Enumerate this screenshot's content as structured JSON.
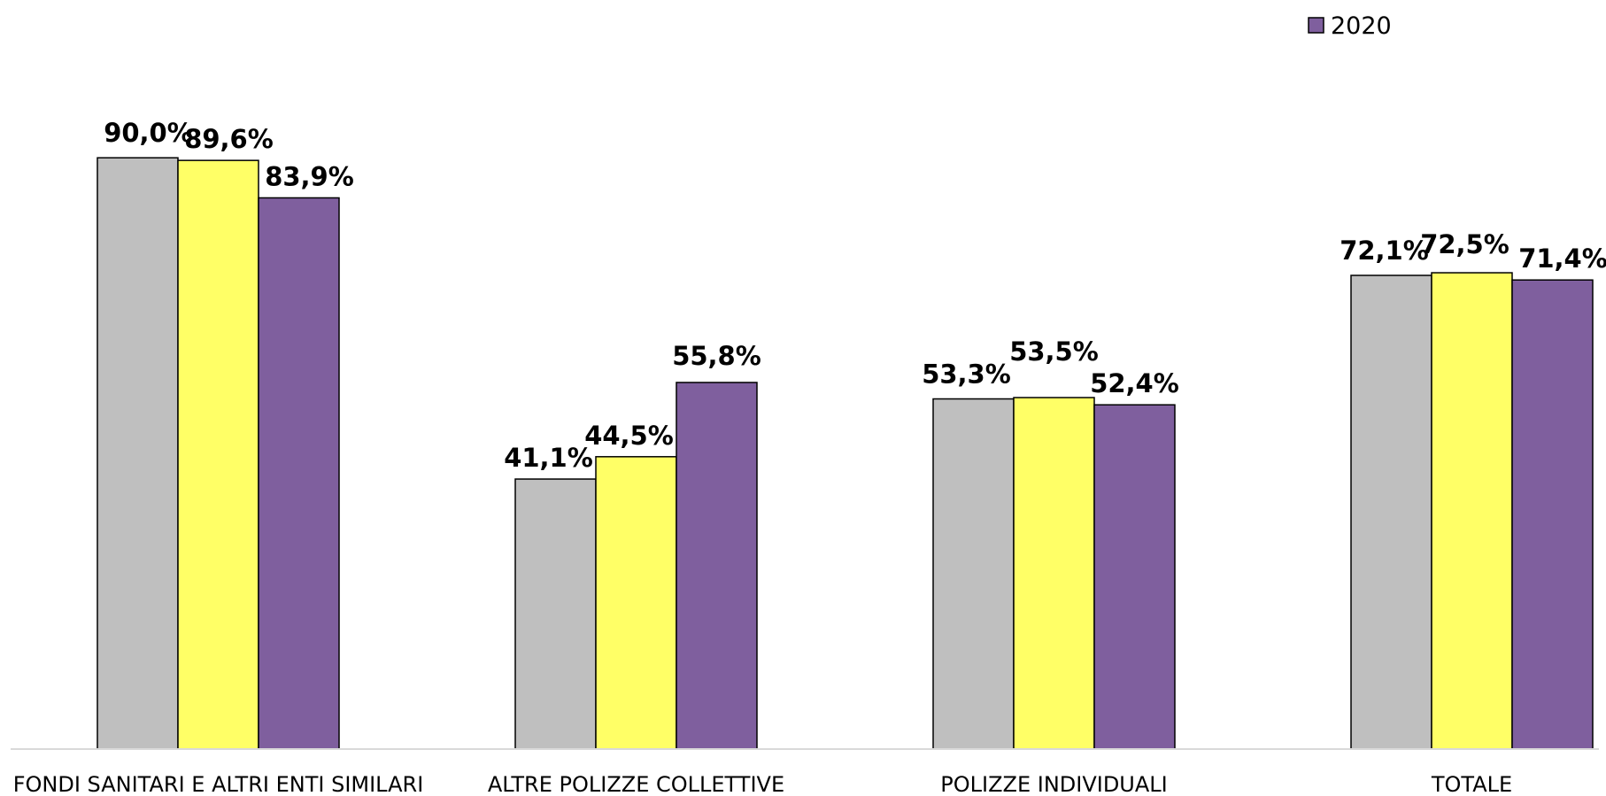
{
  "chart_data": {
    "type": "bar",
    "categories": [
      "FONDI SANITARI E ALTRI ENTI SIMILARI",
      "ALTRE POLIZZE COLLETTIVE",
      "POLIZZE INDIVIDUALI",
      "TOTALE"
    ],
    "series": [
      {
        "values": [
          90.0,
          41.1,
          53.3,
          72.1
        ],
        "labels": [
          "90,0%",
          "41,1%",
          "53,3%",
          "72,1%"
        ],
        "color": "#BFBFBF"
      },
      {
        "values": [
          89.6,
          44.5,
          53.5,
          72.5
        ],
        "labels": [
          "89,6%",
          "44,5%",
          "53,5%",
          "72,5%"
        ],
        "color": "#FFFF66"
      },
      {
        "name": "2020",
        "values": [
          83.9,
          55.8,
          52.4,
          71.4
        ],
        "labels": [
          "83,9%",
          "55,8%",
          "52,4%",
          "71,4%"
        ],
        "color": "#7F5F9E"
      }
    ],
    "ylim": [
      0,
      100
    ],
    "unit": "%",
    "grid": false,
    "legend": {
      "position": "top-right",
      "entries": [
        "2020"
      ]
    }
  }
}
